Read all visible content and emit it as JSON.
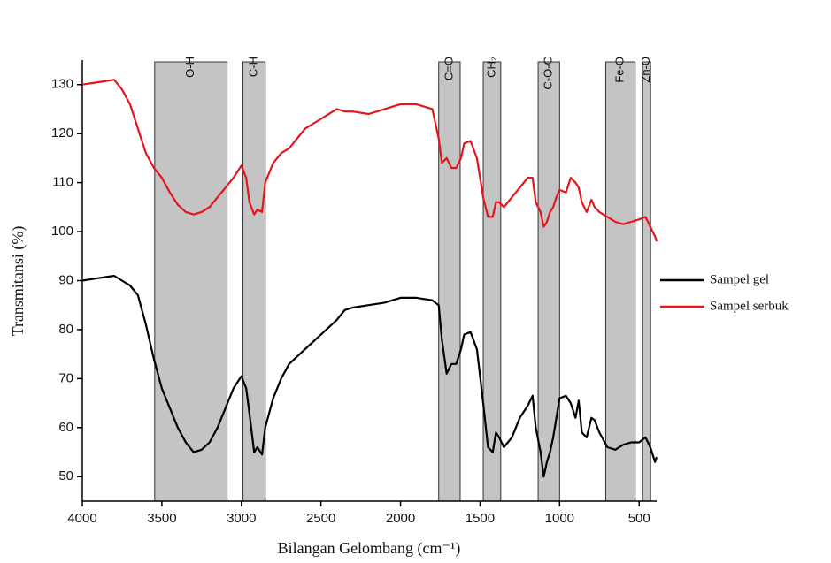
{
  "chart_data": {
    "type": "line",
    "xlabel": "Bilangan Gelombang (cm⁻¹)",
    "ylabel": "Transmitansi (%)",
    "xlim": [
      4000,
      390
    ],
    "ylim": [
      45,
      135
    ],
    "xticks": [
      4000,
      3500,
      3000,
      2500,
      2000,
      1500,
      1000,
      500
    ],
    "yticks": [
      50,
      60,
      70,
      80,
      90,
      100,
      110,
      120,
      130
    ],
    "bands": [
      {
        "label": "O-H",
        "range": [
          3545,
          3090
        ]
      },
      {
        "label": "C-H",
        "range": [
          2990,
          2850
        ]
      },
      {
        "label": "C=O",
        "range": [
          1760,
          1625
        ]
      },
      {
        "label": "CH₂",
        "range": [
          1480,
          1370
        ]
      },
      {
        "label": "C-O-C",
        "range": [
          1135,
          1000
        ]
      },
      {
        "label": "Fe-O",
        "range": [
          710,
          525
        ]
      },
      {
        "label": "Zn-O",
        "range": [
          478,
          428
        ]
      }
    ],
    "band_color": "#c4c4c4",
    "x": [
      4000,
      3900,
      3800,
      3750,
      3700,
      3650,
      3600,
      3550,
      3500,
      3450,
      3400,
      3350,
      3300,
      3250,
      3200,
      3150,
      3100,
      3050,
      3000,
      2970,
      2950,
      2920,
      2900,
      2870,
      2850,
      2800,
      2750,
      2700,
      2650,
      2600,
      2500,
      2400,
      2350,
      2300,
      2200,
      2100,
      2000,
      1900,
      1800,
      1760,
      1740,
      1710,
      1680,
      1650,
      1620,
      1600,
      1560,
      1520,
      1480,
      1450,
      1420,
      1400,
      1380,
      1350,
      1300,
      1250,
      1200,
      1170,
      1150,
      1120,
      1100,
      1080,
      1060,
      1040,
      1020,
      1000,
      960,
      930,
      900,
      880,
      860,
      830,
      800,
      780,
      750,
      700,
      650,
      600,
      550,
      500,
      460,
      430,
      400,
      390
    ],
    "series": [
      {
        "name": "Sampel gel",
        "color": "#000000",
        "values": [
          90,
          90.5,
          91,
          90,
          89,
          87,
          81,
          74,
          68,
          64,
          60,
          57,
          55,
          55.5,
          57,
          60,
          64,
          68,
          70.5,
          68,
          63,
          55,
          56,
          54.5,
          60,
          66,
          70,
          73,
          74.5,
          76,
          79,
          82,
          84,
          84.5,
          85,
          85.5,
          86.5,
          86.5,
          86,
          85,
          78,
          71,
          73,
          73,
          76,
          79,
          79.5,
          76,
          65,
          56,
          55,
          59,
          58,
          56,
          58,
          62,
          64.5,
          66.5,
          60,
          55,
          50,
          53,
          55,
          58,
          62,
          66,
          66.5,
          65,
          62,
          65.5,
          59,
          58,
          62,
          61.5,
          59,
          56,
          55.5,
          56.5,
          57,
          57,
          58,
          56,
          53,
          54
        ]
      },
      {
        "name": "Sampel serbuk",
        "color": "#e8141c",
        "values": [
          130,
          130.5,
          131,
          129,
          126,
          121,
          116,
          113,
          111,
          108,
          105.5,
          104,
          103.5,
          104,
          105,
          107,
          109,
          111,
          113.5,
          111,
          106,
          103.5,
          104.5,
          104,
          110,
          114,
          116,
          117,
          119,
          121,
          123,
          125,
          124.5,
          124.5,
          124,
          125,
          126,
          126,
          125,
          119,
          114,
          115,
          113,
          113,
          115,
          118,
          118.5,
          115,
          107,
          103,
          103,
          106,
          106,
          105,
          107,
          109,
          111,
          111,
          106,
          104,
          101,
          102,
          104,
          105,
          107,
          108.5,
          108,
          111,
          110,
          109,
          106,
          104,
          106.5,
          105,
          104,
          103,
          102,
          101.5,
          102,
          102.5,
          103,
          101,
          99,
          98
        ]
      }
    ]
  }
}
